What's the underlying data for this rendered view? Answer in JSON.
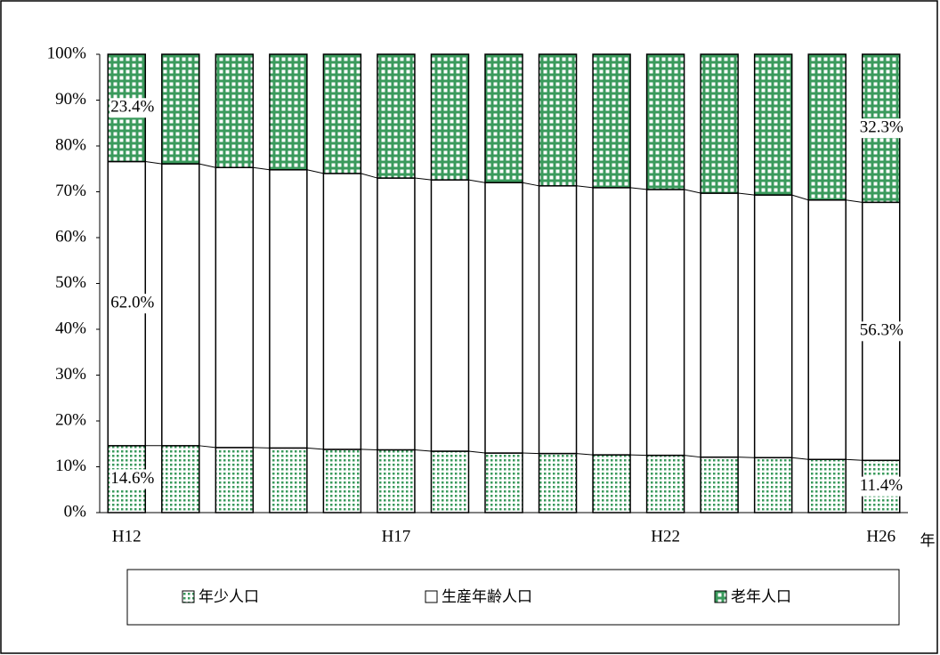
{
  "chart_data": {
    "type": "stacked_bar_100",
    "categories": [
      "H12",
      null,
      null,
      null,
      null,
      "H17",
      null,
      null,
      null,
      null,
      "H22",
      null,
      null,
      null,
      "H26"
    ],
    "x_label": "年",
    "series": [
      {
        "name": "年少人口",
        "color": "#3a9a5c",
        "pattern": "dots",
        "values": [
          14.6,
          14.6,
          14.2,
          14.1,
          13.8,
          13.7,
          13.4,
          13.0,
          12.9,
          12.6,
          12.5,
          12.1,
          12.0,
          11.6,
          11.4
        ],
        "value_labels": [
          "14.6%",
          null,
          null,
          null,
          null,
          null,
          null,
          null,
          null,
          null,
          null,
          null,
          null,
          null,
          "11.4%"
        ]
      },
      {
        "name": "生産年齢人口",
        "color": "#ffffff",
        "pattern": "none",
        "values": [
          62.0,
          61.5,
          61.1,
          60.7,
          60.2,
          59.3,
          59.2,
          59.0,
          58.4,
          58.3,
          58.0,
          57.6,
          57.3,
          56.6,
          56.3
        ],
        "value_labels": [
          "62.0%",
          null,
          null,
          null,
          null,
          null,
          null,
          null,
          null,
          null,
          null,
          null,
          null,
          null,
          "56.3%"
        ]
      },
      {
        "name": "老年人口",
        "color": "#3a9a5c",
        "pattern": "grid",
        "values": [
          23.4,
          23.9,
          24.7,
          25.2,
          26.0,
          27.0,
          27.4,
          28.0,
          28.7,
          29.1,
          29.5,
          30.3,
          30.7,
          31.8,
          32.3
        ],
        "value_labels": [
          "23.4%",
          null,
          null,
          null,
          null,
          null,
          null,
          null,
          null,
          null,
          null,
          null,
          null,
          null,
          "32.3%"
        ]
      }
    ],
    "ylim": [
      0,
      100
    ],
    "yticks": [
      {
        "value": 0,
        "label": "0%"
      },
      {
        "value": 10,
        "label": "10%"
      },
      {
        "value": 20,
        "label": "20%"
      },
      {
        "value": 30,
        "label": "30%"
      },
      {
        "value": 40,
        "label": "40%"
      },
      {
        "value": 50,
        "label": "50%"
      },
      {
        "value": 60,
        "label": "60%"
      },
      {
        "value": 70,
        "label": "70%"
      },
      {
        "value": 80,
        "label": "80%"
      },
      {
        "value": 90,
        "label": "90%"
      },
      {
        "value": 100,
        "label": "100%"
      }
    ],
    "legend": "bottom"
  }
}
